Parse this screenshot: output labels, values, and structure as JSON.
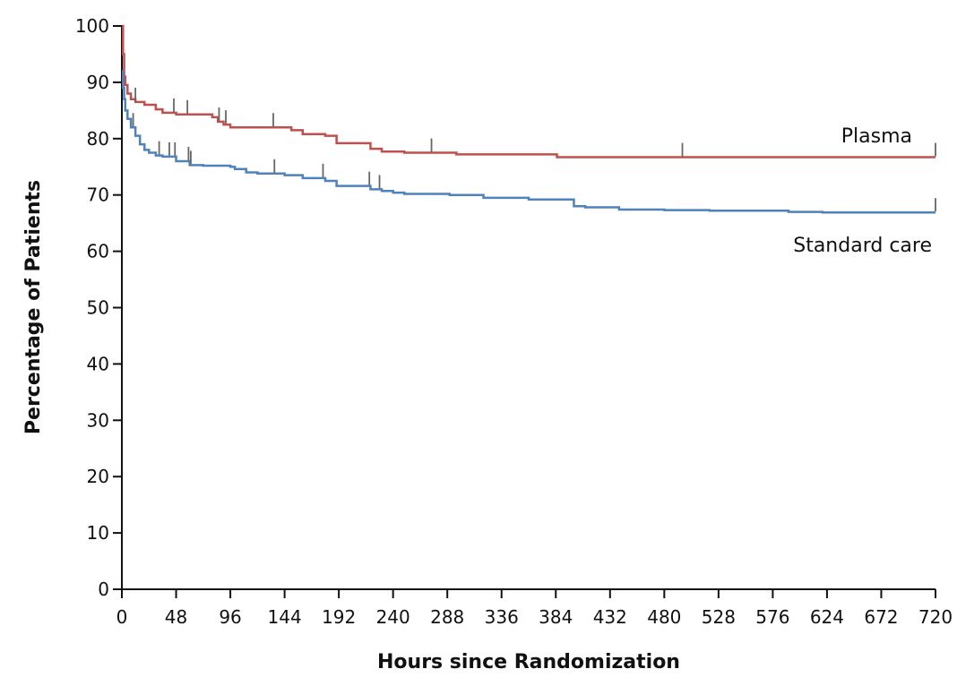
{
  "chart_data": {
    "type": "line",
    "title": "",
    "xlabel": "Hours since Randomization",
    "ylabel": "Percentage of Patients",
    "xlim": [
      0,
      720
    ],
    "ylim": [
      0,
      100
    ],
    "xticks": [
      0,
      48,
      96,
      144,
      192,
      240,
      288,
      336,
      384,
      432,
      480,
      528,
      576,
      624,
      672,
      720
    ],
    "yticks": [
      0,
      10,
      20,
      30,
      40,
      50,
      60,
      70,
      80,
      90,
      100
    ],
    "grid": false,
    "legend": "inline labels at right end of lines",
    "series": [
      {
        "name": "Plasma",
        "color": "#c0504d",
        "x": [
          0,
          1,
          2,
          3,
          5,
          8,
          12,
          20,
          30,
          36,
          48,
          60,
          72,
          80,
          85,
          90,
          96,
          110,
          130,
          150,
          160,
          180,
          190,
          220,
          230,
          240,
          250,
          270,
          296,
          330,
          360,
          385,
          420,
          480,
          500,
          720
        ],
        "y": [
          100,
          95,
          91,
          89.5,
          88,
          87,
          86.5,
          86,
          85.2,
          84.6,
          84.3,
          84.3,
          84.3,
          83.8,
          83,
          82.5,
          82,
          82,
          82,
          81.5,
          80.8,
          80.5,
          79.2,
          78.2,
          77.7,
          77.7,
          77.5,
          77.5,
          77.2,
          77.2,
          77.2,
          76.7,
          76.7,
          76.7,
          76.7,
          76.7
        ],
        "censored": [
          12,
          46,
          58,
          86,
          92,
          134,
          274,
          496,
          720
        ]
      },
      {
        "name": "Standard care",
        "color": "#4f81bd",
        "x": [
          0,
          1,
          2,
          3,
          5,
          8,
          12,
          16,
          20,
          24,
          30,
          36,
          48,
          60,
          72,
          96,
          100,
          110,
          120,
          144,
          160,
          180,
          190,
          220,
          230,
          240,
          250,
          290,
          320,
          360,
          400,
          410,
          440,
          480,
          520,
          560,
          590,
          620,
          720
        ],
        "y": [
          92,
          89,
          87,
          85,
          83.5,
          82,
          80.5,
          79,
          78,
          77.5,
          77,
          76.8,
          76,
          75.3,
          75.2,
          75,
          74.6,
          74,
          73.8,
          73.5,
          73,
          72.5,
          71.6,
          71,
          70.7,
          70.4,
          70.2,
          70,
          69.5,
          69.2,
          68,
          67.8,
          67.4,
          67.3,
          67.2,
          67.2,
          67,
          66.9,
          66.9
        ],
        "censored": [
          10,
          33,
          42,
          47,
          59,
          61,
          135,
          178,
          219,
          228,
          720
        ]
      }
    ]
  }
}
